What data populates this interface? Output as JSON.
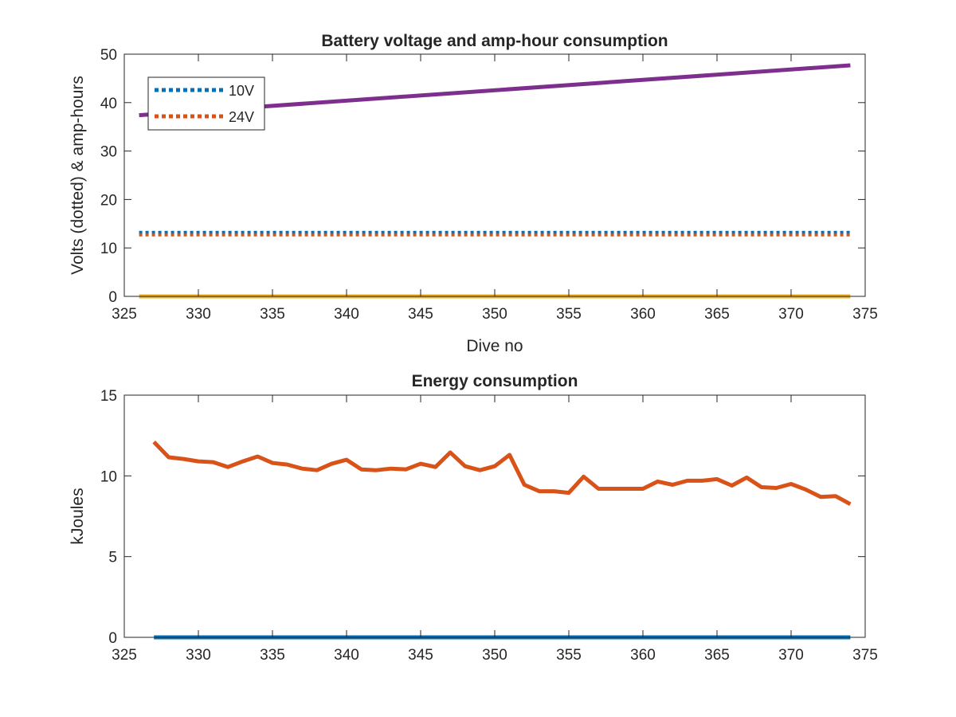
{
  "chart_data": [
    {
      "type": "line",
      "title": "Battery voltage and amp-hour consumption",
      "xlabel": "Dive no",
      "ylabel": "Volts (dotted) & amp-hours",
      "xlim": [
        325,
        375
      ],
      "ylim": [
        0,
        50
      ],
      "xticks": [
        325,
        330,
        335,
        340,
        345,
        350,
        355,
        360,
        365,
        370,
        375
      ],
      "yticks": [
        0,
        10,
        20,
        30,
        40,
        50
      ],
      "grid": false,
      "legend": "top-left",
      "series": [
        {
          "name": "10V",
          "style": "dotted",
          "color": "#0072BD",
          "x": [
            326,
            374
          ],
          "y": [
            13.2,
            13.2
          ]
        },
        {
          "name": "24V",
          "style": "dotted",
          "color": "#D95319",
          "x": [
            326,
            374
          ],
          "y": [
            12.7,
            12.7
          ]
        },
        {
          "style": "solid",
          "color": "#EDB120",
          "x": [
            326,
            374
          ],
          "y": [
            0,
            0
          ]
        },
        {
          "style": "solid",
          "color": "#7E2F8E",
          "x": [
            326,
            374
          ],
          "y": [
            37.4,
            47.7
          ]
        }
      ]
    },
    {
      "type": "line",
      "title": "Energy consumption",
      "xlabel": "",
      "ylabel": "kJoules",
      "xlim": [
        325,
        375
      ],
      "ylim": [
        0,
        15
      ],
      "xticks": [
        325,
        330,
        335,
        340,
        345,
        350,
        355,
        360,
        365,
        370,
        375
      ],
      "yticks": [
        0,
        5,
        10,
        15
      ],
      "grid": false,
      "series": [
        {
          "style": "solid",
          "color": "#0072BD",
          "x": [
            327,
            374
          ],
          "y": [
            0,
            0
          ]
        },
        {
          "style": "solid",
          "color": "#D95319",
          "x": [
            327,
            328,
            329,
            330,
            331,
            332,
            333,
            334,
            335,
            336,
            337,
            338,
            339,
            340,
            341,
            342,
            343,
            344,
            345,
            346,
            347,
            348,
            349,
            350,
            351,
            352,
            353,
            354,
            355,
            356,
            357,
            358,
            359,
            360,
            361,
            362,
            363,
            364,
            365,
            366,
            367,
            368,
            369,
            370,
            371,
            372,
            373,
            374
          ],
          "y": [
            12.1,
            11.15,
            11.05,
            10.9,
            10.85,
            10.55,
            10.9,
            11.2,
            10.8,
            10.7,
            10.45,
            10.35,
            10.75,
            11.0,
            10.4,
            10.35,
            10.45,
            10.4,
            10.75,
            10.55,
            11.45,
            10.6,
            10.35,
            10.6,
            11.3,
            9.45,
            9.05,
            9.05,
            8.95,
            9.95,
            9.2,
            9.2,
            9.2,
            9.2,
            9.65,
            9.45,
            9.7,
            9.7,
            9.8,
            9.4,
            9.9,
            9.3,
            9.25,
            9.5,
            9.15,
            8.7,
            8.75,
            8.25
          ]
        }
      ]
    }
  ]
}
